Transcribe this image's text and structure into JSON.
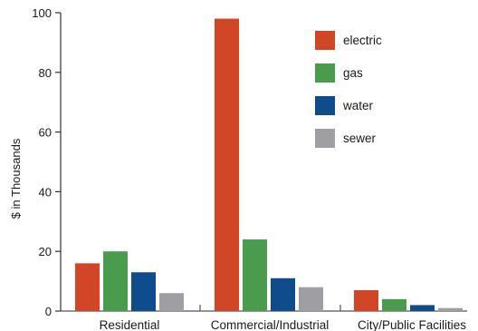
{
  "chart_data": {
    "type": "bar",
    "categories": [
      "Residential",
      "Commercial/Industrial",
      "City/Public Facilities"
    ],
    "series": [
      {
        "name": "electric",
        "values": [
          16,
          98,
          7
        ],
        "color": "#d04627"
      },
      {
        "name": "gas",
        "values": [
          20,
          24,
          4
        ],
        "color": "#4a9b4e"
      },
      {
        "name": "water",
        "values": [
          13,
          11,
          2
        ],
        "color": "#0f4c8c"
      },
      {
        "name": "sewer",
        "values": [
          6,
          8,
          1
        ],
        "color": "#9e9ea3"
      }
    ],
    "yticks": [
      "0",
      "20",
      "40",
      "60",
      "80",
      "100"
    ],
    "ylabel": "$ in Thousands",
    "ylim": [
      0,
      100
    ],
    "legend": "top-right",
    "grid": false
  }
}
